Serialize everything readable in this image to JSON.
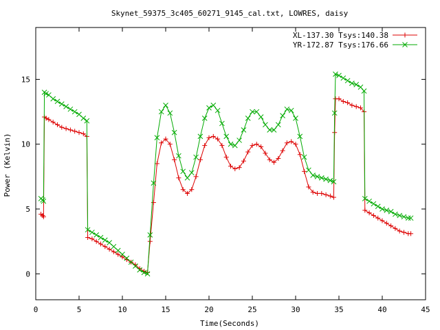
{
  "chart_data": {
    "type": "line",
    "title": "Skynet_59375_3c405_60271_9145_cal.txt, LOWRES, daisy",
    "xlabel": "Time(Seconds)",
    "ylabel": "Power (Kelvin)",
    "xlim": [
      0,
      45
    ],
    "ylim": [
      -2,
      19
    ],
    "xticks": [
      0,
      5,
      10,
      15,
      20,
      25,
      30,
      35,
      40,
      45
    ],
    "yticks": [
      0,
      5,
      10,
      15
    ],
    "grid": false,
    "legend_position": "top-right",
    "series": [
      {
        "name": "XL-137.30 Tsys:140.38",
        "color": "#dd0000",
        "marker": "plus",
        "points": [
          [
            0.6,
            4.6
          ],
          [
            0.8,
            4.5
          ],
          [
            0.9,
            4.4
          ],
          [
            1.0,
            12.1
          ],
          [
            1.2,
            12.0
          ],
          [
            1.5,
            11.9
          ],
          [
            2.0,
            11.7
          ],
          [
            2.5,
            11.5
          ],
          [
            3.0,
            11.3
          ],
          [
            3.5,
            11.2
          ],
          [
            4.0,
            11.1
          ],
          [
            4.5,
            11.0
          ],
          [
            5.0,
            10.9
          ],
          [
            5.5,
            10.8
          ],
          [
            5.9,
            10.6
          ],
          [
            6.0,
            2.8
          ],
          [
            6.5,
            2.7
          ],
          [
            7.0,
            2.5
          ],
          [
            7.5,
            2.3
          ],
          [
            8.0,
            2.1
          ],
          [
            8.5,
            1.9
          ],
          [
            9.0,
            1.7
          ],
          [
            9.5,
            1.5
          ],
          [
            10.0,
            1.3
          ],
          [
            10.5,
            1.1
          ],
          [
            11.0,
            0.9
          ],
          [
            11.5,
            0.7
          ],
          [
            12.0,
            0.4
          ],
          [
            12.5,
            0.2
          ],
          [
            12.9,
            0.1
          ],
          [
            13.2,
            2.5
          ],
          [
            13.6,
            5.5
          ],
          [
            14.0,
            8.5
          ],
          [
            14.5,
            10.1
          ],
          [
            15.0,
            10.4
          ],
          [
            15.5,
            10.0
          ],
          [
            16.0,
            8.8
          ],
          [
            16.5,
            7.4
          ],
          [
            17.0,
            6.5
          ],
          [
            17.5,
            6.2
          ],
          [
            18.0,
            6.5
          ],
          [
            18.5,
            7.5
          ],
          [
            19.0,
            8.8
          ],
          [
            19.5,
            9.9
          ],
          [
            20.0,
            10.5
          ],
          [
            20.5,
            10.6
          ],
          [
            21.0,
            10.4
          ],
          [
            21.5,
            9.9
          ],
          [
            22.0,
            9.0
          ],
          [
            22.5,
            8.3
          ],
          [
            23.0,
            8.1
          ],
          [
            23.5,
            8.2
          ],
          [
            24.0,
            8.7
          ],
          [
            24.5,
            9.4
          ],
          [
            25.0,
            9.9
          ],
          [
            25.5,
            10.0
          ],
          [
            26.0,
            9.8
          ],
          [
            26.5,
            9.3
          ],
          [
            27.0,
            8.8
          ],
          [
            27.5,
            8.6
          ],
          [
            28.0,
            8.9
          ],
          [
            28.5,
            9.5
          ],
          [
            29.0,
            10.1
          ],
          [
            29.5,
            10.2
          ],
          [
            30.0,
            10.0
          ],
          [
            30.5,
            9.2
          ],
          [
            31.0,
            7.9
          ],
          [
            31.5,
            6.7
          ],
          [
            32.0,
            6.3
          ],
          [
            32.5,
            6.2
          ],
          [
            33.0,
            6.2
          ],
          [
            33.5,
            6.1
          ],
          [
            34.0,
            6.0
          ],
          [
            34.4,
            5.9
          ],
          [
            34.5,
            10.9
          ],
          [
            34.6,
            13.5
          ],
          [
            35.0,
            13.5
          ],
          [
            35.5,
            13.3
          ],
          [
            36.0,
            13.2
          ],
          [
            36.5,
            13.0
          ],
          [
            37.0,
            12.9
          ],
          [
            37.5,
            12.8
          ],
          [
            37.9,
            12.5
          ],
          [
            38.0,
            4.9
          ],
          [
            38.5,
            4.7
          ],
          [
            39.0,
            4.5
          ],
          [
            39.5,
            4.3
          ],
          [
            40.0,
            4.1
          ],
          [
            40.5,
            3.9
          ],
          [
            41.0,
            3.7
          ],
          [
            41.5,
            3.5
          ],
          [
            42.0,
            3.3
          ],
          [
            42.5,
            3.2
          ],
          [
            43.0,
            3.1
          ],
          [
            43.3,
            3.1
          ]
        ]
      },
      {
        "name": "YR-172.87 Tsys:176.66",
        "color": "#00aa00",
        "marker": "cross",
        "points": [
          [
            0.6,
            5.8
          ],
          [
            0.8,
            5.7
          ],
          [
            0.9,
            5.6
          ],
          [
            1.0,
            14.0
          ],
          [
            1.2,
            13.9
          ],
          [
            1.5,
            13.8
          ],
          [
            2.0,
            13.5
          ],
          [
            2.5,
            13.3
          ],
          [
            3.0,
            13.1
          ],
          [
            3.5,
            12.9
          ],
          [
            4.0,
            12.7
          ],
          [
            4.5,
            12.5
          ],
          [
            5.0,
            12.3
          ],
          [
            5.5,
            12.0
          ],
          [
            5.9,
            11.8
          ],
          [
            6.0,
            3.4
          ],
          [
            6.5,
            3.2
          ],
          [
            7.0,
            3.0
          ],
          [
            7.5,
            2.8
          ],
          [
            8.0,
            2.6
          ],
          [
            8.5,
            2.4
          ],
          [
            9.0,
            2.1
          ],
          [
            9.5,
            1.8
          ],
          [
            10.0,
            1.5
          ],
          [
            10.5,
            1.2
          ],
          [
            11.0,
            0.9
          ],
          [
            11.5,
            0.6
          ],
          [
            12.0,
            0.3
          ],
          [
            12.5,
            0.1
          ],
          [
            12.9,
            0.0
          ],
          [
            13.2,
            3.0
          ],
          [
            13.6,
            7.0
          ],
          [
            14.0,
            10.5
          ],
          [
            14.5,
            12.5
          ],
          [
            15.0,
            13.0
          ],
          [
            15.5,
            12.4
          ],
          [
            16.0,
            10.9
          ],
          [
            16.5,
            9.1
          ],
          [
            17.0,
            7.9
          ],
          [
            17.5,
            7.4
          ],
          [
            18.0,
            7.8
          ],
          [
            18.5,
            9.0
          ],
          [
            19.0,
            10.6
          ],
          [
            19.5,
            12.0
          ],
          [
            20.0,
            12.8
          ],
          [
            20.5,
            13.0
          ],
          [
            21.0,
            12.6
          ],
          [
            21.5,
            11.6
          ],
          [
            22.0,
            10.6
          ],
          [
            22.5,
            10.0
          ],
          [
            23.0,
            9.9
          ],
          [
            23.5,
            10.3
          ],
          [
            24.0,
            11.1
          ],
          [
            24.5,
            12.0
          ],
          [
            25.0,
            12.5
          ],
          [
            25.5,
            12.5
          ],
          [
            26.0,
            12.1
          ],
          [
            26.5,
            11.5
          ],
          [
            27.0,
            11.1
          ],
          [
            27.5,
            11.1
          ],
          [
            28.0,
            11.5
          ],
          [
            28.5,
            12.2
          ],
          [
            29.0,
            12.7
          ],
          [
            29.5,
            12.6
          ],
          [
            30.0,
            12.0
          ],
          [
            30.5,
            10.6
          ],
          [
            31.0,
            9.0
          ],
          [
            31.5,
            8.0
          ],
          [
            32.0,
            7.6
          ],
          [
            32.5,
            7.5
          ],
          [
            33.0,
            7.4
          ],
          [
            33.5,
            7.3
          ],
          [
            34.0,
            7.2
          ],
          [
            34.4,
            7.1
          ],
          [
            34.5,
            12.4
          ],
          [
            34.6,
            15.4
          ],
          [
            35.0,
            15.3
          ],
          [
            35.5,
            15.1
          ],
          [
            36.0,
            14.9
          ],
          [
            36.5,
            14.7
          ],
          [
            37.0,
            14.6
          ],
          [
            37.5,
            14.4
          ],
          [
            37.9,
            14.1
          ],
          [
            38.0,
            5.8
          ],
          [
            38.5,
            5.6
          ],
          [
            39.0,
            5.4
          ],
          [
            39.5,
            5.2
          ],
          [
            40.0,
            5.0
          ],
          [
            40.5,
            4.9
          ],
          [
            41.0,
            4.8
          ],
          [
            41.5,
            4.6
          ],
          [
            42.0,
            4.5
          ],
          [
            42.5,
            4.4
          ],
          [
            43.0,
            4.3
          ],
          [
            43.3,
            4.3
          ]
        ]
      }
    ]
  }
}
